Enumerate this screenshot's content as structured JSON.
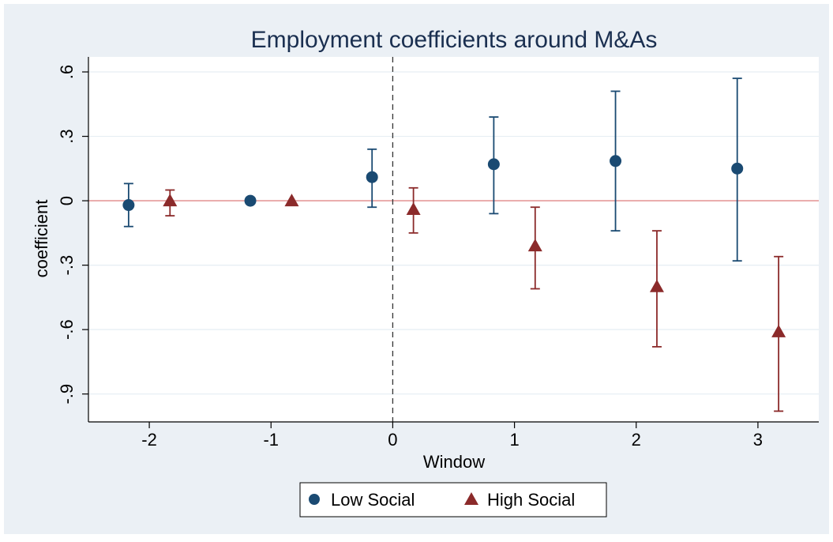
{
  "chart_data": {
    "type": "scatter",
    "title": "Employment coefficients around M&As",
    "xlabel": "Window",
    "ylabel": "coefficient",
    "xlim": [
      -2.5,
      3.5
    ],
    "ylim": [
      -1.03,
      0.67
    ],
    "x_ticks": [
      {
        "value": -2,
        "label": "-2"
      },
      {
        "value": -1,
        "label": "-1"
      },
      {
        "value": 0,
        "label": "0"
      },
      {
        "value": 1,
        "label": "1"
      },
      {
        "value": 2,
        "label": "2"
      },
      {
        "value": 3,
        "label": "3"
      }
    ],
    "y_ticks": [
      {
        "value": 0.6,
        "label": ".6"
      },
      {
        "value": 0.3,
        "label": ".3"
      },
      {
        "value": 0,
        "label": "0"
      },
      {
        "value": -0.3,
        "label": "-.3"
      },
      {
        "value": -0.6,
        "label": "-.6"
      },
      {
        "value": -0.9,
        "label": "-.9"
      }
    ],
    "reference_lines": {
      "horizontal_y": 0,
      "vertical_x": 0
    },
    "grid": true,
    "legend_position": "bottom",
    "series": [
      {
        "name": "Low Social",
        "marker": "circle",
        "color": "#1a4a72",
        "points": [
          {
            "x": -2.17,
            "y": -0.02,
            "lo": -0.12,
            "hi": 0.08
          },
          {
            "x": -1.17,
            "y": 0.0,
            "lo": 0.0,
            "hi": 0.0
          },
          {
            "x": -0.17,
            "y": 0.11,
            "lo": -0.03,
            "hi": 0.24
          },
          {
            "x": 0.83,
            "y": 0.17,
            "lo": -0.06,
            "hi": 0.39
          },
          {
            "x": 1.83,
            "y": 0.185,
            "lo": -0.14,
            "hi": 0.51
          },
          {
            "x": 2.83,
            "y": 0.15,
            "lo": -0.28,
            "hi": 0.57
          }
        ]
      },
      {
        "name": "High Social",
        "marker": "triangle",
        "color": "#8b2a2a",
        "points": [
          {
            "x": -1.83,
            "y": 0.0,
            "lo": -0.07,
            "hi": 0.05
          },
          {
            "x": -0.83,
            "y": 0.0,
            "lo": 0.0,
            "hi": 0.0
          },
          {
            "x": 0.17,
            "y": -0.04,
            "lo": -0.15,
            "hi": 0.06
          },
          {
            "x": 1.17,
            "y": -0.21,
            "lo": -0.41,
            "hi": -0.03
          },
          {
            "x": 2.17,
            "y": -0.4,
            "lo": -0.68,
            "hi": -0.14
          },
          {
            "x": 3.17,
            "y": -0.61,
            "lo": -0.98,
            "hi": -0.26
          }
        ]
      }
    ]
  },
  "colors": {
    "frame_background": "#ebf0f5",
    "plot_background": "#ffffff",
    "gridline": "#e6eef3",
    "zero_line": "#e59a9a",
    "low_social": "#1a4a72",
    "high_social": "#8b2a2a"
  }
}
